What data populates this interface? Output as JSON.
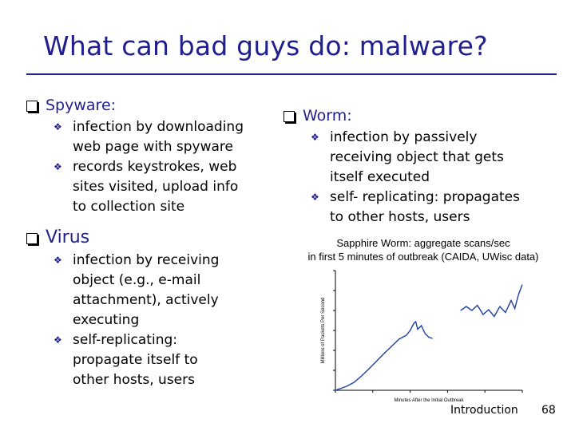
{
  "slide": {
    "title": "What can bad guys do: malware?",
    "footer_label": "Introduction",
    "page_number": "68",
    "colors": {
      "heading": "#1f1f8f",
      "text": "#000000",
      "background": "#ffffff"
    }
  },
  "left": {
    "spyware": {
      "heading": "Spyware:",
      "items": [
        [
          "infection by downloading",
          "web page with spyware"
        ],
        [
          "records keystrokes, web",
          "sites visited, upload info",
          "to collection site"
        ]
      ]
    },
    "virus": {
      "heading": "Virus",
      "items": [
        [
          "infection by receiving",
          "object (e.g., e-mail",
          "attachment), actively",
          "executing"
        ],
        [
          "self-replicating:",
          "propagate itself to",
          "other hosts, users"
        ]
      ]
    }
  },
  "right": {
    "worm": {
      "heading": "Worm:",
      "items": [
        [
          "infection by passively",
          "receiving object that gets",
          "itself executed"
        ],
        [
          "self- replicating: propagates",
          "to other hosts, users"
        ]
      ]
    },
    "chart_caption": [
      "Sapphire Worm: aggregate scans/sec",
      "in first 5 minutes of outbreak (CAIDA, UWisc data)"
    ]
  },
  "chart_data": {
    "type": "line",
    "title": "Sapphire Worm: aggregate scans/sec in first 5 minutes of outbreak (CAIDA, UWisc data)",
    "xlabel": "Minutes After the Initial Outbreak",
    "ylabel": "Millions of Packets Per Second",
    "xlim": [
      0,
      5
    ],
    "ylim": [
      0,
      30
    ],
    "grid": false,
    "series": [
      {
        "values_x": [
          0.0,
          0.15,
          0.3,
          0.5,
          0.7,
          0.9,
          1.1,
          1.3,
          1.5,
          1.7,
          1.9,
          2.0,
          2.1,
          2.15,
          2.2,
          2.3,
          2.4,
          2.5,
          2.6
        ],
        "values_y": [
          0.0,
          0.5,
          1.0,
          2.0,
          3.6,
          5.4,
          7.3,
          9.2,
          11.0,
          12.8,
          13.8,
          15.0,
          16.8,
          17.2,
          15.3,
          16.2,
          14.2,
          13.3,
          13.0
        ],
        "segment": 1
      },
      {
        "values_x": [
          3.35,
          3.5,
          3.65,
          3.8,
          3.95,
          4.1,
          4.25,
          4.4,
          4.55,
          4.7,
          4.8,
          4.9,
          5.0
        ],
        "values_y": [
          20.0,
          21.0,
          20.0,
          21.3,
          19.0,
          20.2,
          18.5,
          21.0,
          19.5,
          22.5,
          20.5,
          24.0,
          26.5
        ],
        "segment": 2
      }
    ]
  }
}
